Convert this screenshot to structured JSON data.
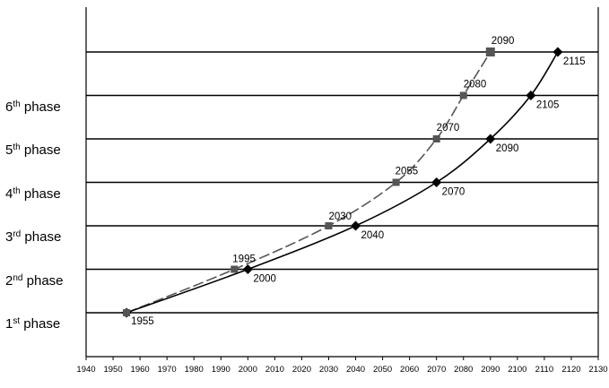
{
  "chart_data": {
    "type": "line",
    "title": "",
    "xlabel": "",
    "ylabel": "",
    "xlim": [
      1940,
      2130
    ],
    "ylim": [
      0,
      6
    ],
    "x_ticks": [
      "1940",
      "1950",
      "1960",
      "1970",
      "1980",
      "1990",
      "2000",
      "2010",
      "2020",
      "2030",
      "2040",
      "2050",
      "2060",
      "2070",
      "2080",
      "2090",
      "2100",
      "2110",
      "2120",
      "2130"
    ],
    "grid": "horizontal",
    "phase_labels": [
      {
        "num": "1",
        "sup": "st",
        "word": " phase"
      },
      {
        "num": "2",
        "sup": "nd",
        "word": " phase"
      },
      {
        "num": "3",
        "sup": "rd",
        "word": " phase"
      },
      {
        "num": "4",
        "sup": "th",
        "word": " phase"
      },
      {
        "num": "5",
        "sup": "th",
        "word": " phase"
      },
      {
        "num": "6",
        "sup": "th",
        "word": " phase"
      }
    ],
    "series": [
      {
        "marker": "square",
        "color": "#555555",
        "line_style": "dashed",
        "points": [
          {
            "x": 1955,
            "y": 0,
            "label": "1955"
          },
          {
            "x": 1995,
            "y": 1,
            "label": "1995"
          },
          {
            "x": 2030,
            "y": 2,
            "label": "2030"
          },
          {
            "x": 2055,
            "y": 3,
            "label": "2055"
          },
          {
            "x": 2070,
            "y": 4,
            "label": "2070"
          },
          {
            "x": 2080,
            "y": 5,
            "label": "2080"
          },
          {
            "x": 2090,
            "y": 6,
            "label": "2090"
          }
        ]
      },
      {
        "marker": "diamond",
        "color": "#000000",
        "line_style": "solid",
        "points": [
          {
            "x": 1955,
            "y": 0,
            "label": ""
          },
          {
            "x": 2000,
            "y": 1,
            "label": "2000"
          },
          {
            "x": 2040,
            "y": 2,
            "label": "2040"
          },
          {
            "x": 2070,
            "y": 3,
            "label": "2070"
          },
          {
            "x": 2090,
            "y": 4,
            "label": "2090"
          },
          {
            "x": 2105,
            "y": 5,
            "label": "2105"
          },
          {
            "x": 2115,
            "y": 6,
            "label": "2115"
          }
        ]
      }
    ]
  }
}
